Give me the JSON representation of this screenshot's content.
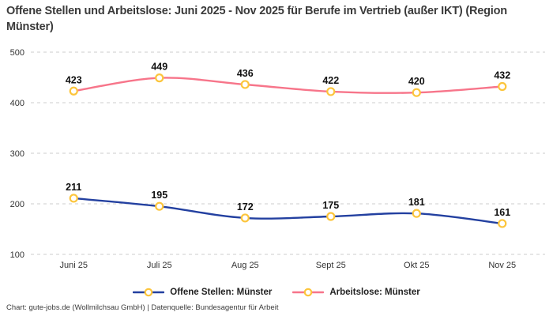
{
  "page": {
    "title": "Offene Stellen und Arbeitslose: Juni 2025 - Nov 2025 für Berufe im Vertrieb (außer IKT) (Region Münster)",
    "footer": "Chart: gute-jobs.de (Wollmilchsau GmbH) | Datenquelle: Bundesagentur für Arbeit"
  },
  "chart_data": {
    "type": "line",
    "title": "Offene Stellen und Arbeitslose: Juni 2025 - Nov 2025 für Berufe im Vertrieb (außer IKT) (Region Münster)",
    "categories": [
      "Juni 25",
      "Juli 25",
      "Aug 25",
      "Sept 25",
      "Okt 25",
      "Nov 25"
    ],
    "series": [
      {
        "name": "Offene Stellen: Münster",
        "values": [
          211,
          195,
          172,
          175,
          181,
          161
        ],
        "color": "#2340a0"
      },
      {
        "name": "Arbeitslose: Münster",
        "values": [
          423,
          449,
          436,
          422,
          420,
          432
        ],
        "color": "#f7758a"
      }
    ],
    "marker": {
      "shape": "circle",
      "fill": "#ffffff",
      "stroke": "#fcc53c"
    },
    "xlabel": "",
    "ylabel": "",
    "ylim": [
      100,
      500
    ],
    "yticks": [
      100,
      200,
      300,
      400,
      500
    ],
    "grid": "horizontal-dashed",
    "gridline_color": "#cdcdcd",
    "label_color": "#111111",
    "tick_color": "#333333",
    "legend_position": "bottom"
  }
}
